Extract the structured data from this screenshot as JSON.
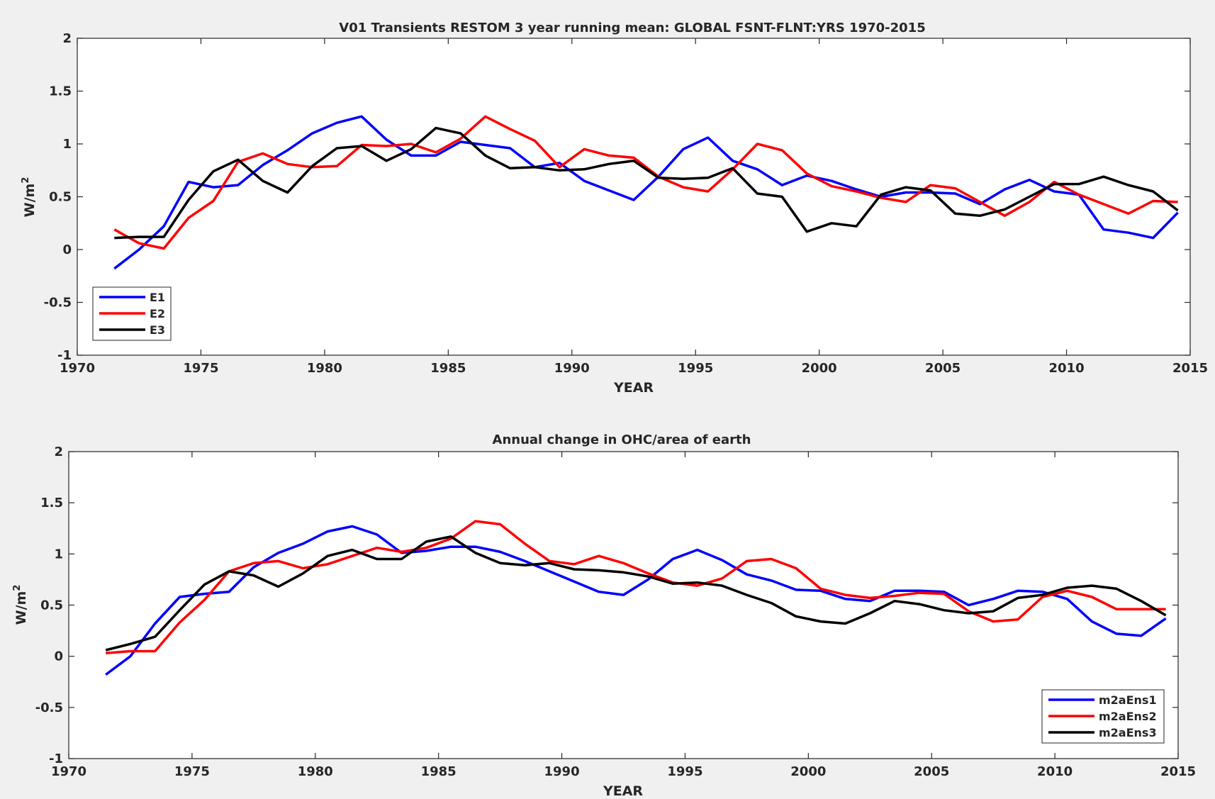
{
  "chart_data": [
    {
      "type": "line",
      "title": "V01 Transients RESTOM 3 year running mean: GLOBAL FSNT-FLNT:YRS 1970-2015",
      "xlabel": "YEAR",
      "ylabel": "W/m",
      "ylabel_sup": "2",
      "xlim": [
        1970,
        2015
      ],
      "ylim": [
        -1,
        2
      ],
      "xticks": [
        "1970",
        "1975",
        "1980",
        "1985",
        "1990",
        "1995",
        "2000",
        "2005",
        "2010",
        "2015"
      ],
      "yticks": [
        "-1",
        "-0.5",
        "0",
        "0.5",
        "1",
        "1.5",
        "2"
      ],
      "legend_position": "bottom-left",
      "grid": false,
      "x": [
        1971.5,
        1972.5,
        1973.5,
        1974.5,
        1975.5,
        1976.5,
        1977.5,
        1978.5,
        1979.5,
        1980.5,
        1981.5,
        1982.5,
        1983.5,
        1984.5,
        1985.5,
        1986.5,
        1987.5,
        1988.5,
        1989.5,
        1990.5,
        1991.5,
        1992.5,
        1993.5,
        1994.5,
        1995.5,
        1996.5,
        1997.5,
        1998.5,
        1999.5,
        2000.5,
        2001.5,
        2002.5,
        2003.5,
        2004.5,
        2005.5,
        2006.5,
        2007.5,
        2008.5,
        2009.5,
        2010.5,
        2011.5,
        2012.5,
        2013.5,
        2014.5
      ],
      "series": [
        {
          "name": "E1",
          "color": "#0000ff",
          "values": [
            -0.18,
            0.0,
            0.22,
            0.64,
            0.59,
            0.61,
            0.8,
            0.94,
            1.1,
            1.2,
            1.26,
            1.04,
            0.89,
            0.89,
            1.02,
            0.99,
            0.96,
            0.78,
            0.82,
            0.65,
            0.56,
            0.47,
            0.69,
            0.95,
            1.06,
            0.84,
            0.76,
            0.61,
            0.7,
            0.65,
            0.57,
            0.5,
            0.54,
            0.54,
            0.53,
            0.43,
            0.57,
            0.66,
            0.55,
            0.52,
            0.19,
            0.16,
            0.11,
            0.35
          ]
        },
        {
          "name": "E2",
          "color": "#ff0000",
          "values": [
            0.19,
            0.06,
            0.01,
            0.3,
            0.46,
            0.83,
            0.91,
            0.81,
            0.78,
            0.79,
            0.99,
            0.98,
            1.0,
            0.92,
            1.05,
            1.26,
            1.14,
            1.03,
            0.78,
            0.95,
            0.89,
            0.87,
            0.69,
            0.59,
            0.55,
            0.76,
            1.0,
            0.94,
            0.72,
            0.6,
            0.55,
            0.49,
            0.45,
            0.61,
            0.58,
            0.45,
            0.32,
            0.45,
            0.64,
            0.52,
            0.43,
            0.34,
            0.46,
            0.45
          ]
        },
        {
          "name": "E3",
          "color": "#000000",
          "values": [
            0.11,
            0.12,
            0.12,
            0.47,
            0.74,
            0.85,
            0.65,
            0.54,
            0.79,
            0.96,
            0.98,
            0.84,
            0.95,
            1.15,
            1.1,
            0.89,
            0.77,
            0.78,
            0.75,
            0.76,
            0.81,
            0.84,
            0.68,
            0.67,
            0.68,
            0.77,
            0.53,
            0.5,
            0.17,
            0.25,
            0.22,
            0.52,
            0.59,
            0.56,
            0.34,
            0.32,
            0.38,
            0.5,
            0.62,
            0.62,
            0.69,
            0.61,
            0.55,
            0.37
          ]
        }
      ]
    },
    {
      "type": "line",
      "title": "Annual change in OHC/area of earth",
      "xlabel": "YEAR",
      "ylabel": "W/m",
      "ylabel_sup": "2",
      "xlim": [
        1970,
        2015
      ],
      "ylim": [
        -1,
        2
      ],
      "xticks": [
        "1970",
        "1975",
        "1980",
        "1985",
        "1990",
        "1995",
        "2000",
        "2005",
        "2010",
        "2015"
      ],
      "yticks": [
        "-1",
        "-0.5",
        "0",
        "0.5",
        "1",
        "1.5",
        "2"
      ],
      "legend_position": "bottom-right",
      "grid": false,
      "x": [
        1971.5,
        1972.5,
        1973.5,
        1974.5,
        1975.5,
        1976.5,
        1977.5,
        1978.5,
        1979.5,
        1980.5,
        1981.5,
        1982.5,
        1983.5,
        1984.5,
        1985.5,
        1986.5,
        1987.5,
        1988.5,
        1989.5,
        1990.5,
        1991.5,
        1992.5,
        1993.5,
        1994.5,
        1995.5,
        1996.5,
        1997.5,
        1998.5,
        1999.5,
        2000.5,
        2001.5,
        2002.5,
        2003.5,
        2004.5,
        2005.5,
        2006.5,
        2007.5,
        2008.5,
        2009.5,
        2010.5,
        2011.5,
        2012.5,
        2013.5,
        2014.5
      ],
      "series": [
        {
          "name": "m2aEns1",
          "color": "#0000ff",
          "values": [
            -0.18,
            0.0,
            0.32,
            0.58,
            0.61,
            0.63,
            0.87,
            1.01,
            1.1,
            1.22,
            1.27,
            1.19,
            1.01,
            1.03,
            1.07,
            1.07,
            1.02,
            0.93,
            0.83,
            0.73,
            0.63,
            0.6,
            0.75,
            0.95,
            1.04,
            0.94,
            0.8,
            0.74,
            0.65,
            0.64,
            0.56,
            0.54,
            0.64,
            0.64,
            0.63,
            0.5,
            0.56,
            0.64,
            0.63,
            0.56,
            0.34,
            0.22,
            0.2,
            0.37
          ]
        },
        {
          "name": "m2aEns2",
          "color": "#ff0000",
          "values": [
            0.03,
            0.05,
            0.05,
            0.33,
            0.55,
            0.83,
            0.91,
            0.93,
            0.86,
            0.9,
            0.98,
            1.06,
            1.02,
            1.06,
            1.15,
            1.32,
            1.29,
            1.1,
            0.93,
            0.9,
            0.98,
            0.91,
            0.81,
            0.72,
            0.69,
            0.76,
            0.93,
            0.95,
            0.86,
            0.66,
            0.6,
            0.57,
            0.59,
            0.62,
            0.61,
            0.44,
            0.34,
            0.36,
            0.58,
            0.64,
            0.58,
            0.46,
            0.46,
            0.46
          ]
        },
        {
          "name": "m2aEns3",
          "color": "#000000",
          "values": [
            0.06,
            0.12,
            0.19,
            0.45,
            0.7,
            0.83,
            0.79,
            0.68,
            0.81,
            0.98,
            1.04,
            0.95,
            0.95,
            1.12,
            1.17,
            1.01,
            0.91,
            0.89,
            0.91,
            0.85,
            0.84,
            0.82,
            0.78,
            0.71,
            0.72,
            0.69,
            0.6,
            0.52,
            0.39,
            0.34,
            0.32,
            0.42,
            0.54,
            0.51,
            0.45,
            0.42,
            0.44,
            0.57,
            0.6,
            0.67,
            0.69,
            0.66,
            0.54,
            0.4
          ]
        }
      ]
    }
  ]
}
